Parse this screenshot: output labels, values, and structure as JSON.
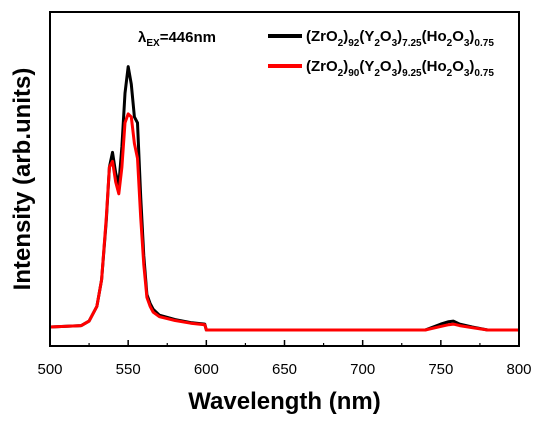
{
  "chart_data": {
    "type": "line",
    "xlabel": "Wavelength (nm)",
    "ylabel": "Intensity (arb.units)",
    "xlim": [
      500,
      800
    ],
    "ylim": [
      0,
      1.0
    ],
    "x_ticks": [
      "500",
      "550",
      "600",
      "650",
      "700",
      "750",
      "800"
    ],
    "y_ticks_shown": false,
    "grid": false,
    "legend_position": "top-right",
    "annotation": {
      "symbol": "λ",
      "subscript": "EX",
      "text": "=446nm"
    },
    "series": [
      {
        "name": "(ZrO2)92(Y2O3)7.25(Ho2O3)0.75",
        "color": "#000000",
        "legend_parts": [
          [
            "(ZrO",
            "n"
          ],
          [
            "2",
            "s"
          ],
          [
            ")",
            "n"
          ],
          [
            "92",
            "s"
          ],
          [
            "(Y",
            "n"
          ],
          [
            "2",
            "s"
          ],
          [
            "O",
            "n"
          ],
          [
            "3",
            "s"
          ],
          [
            ")",
            "n"
          ],
          [
            "7.25",
            "s"
          ],
          [
            "(Ho",
            "n"
          ],
          [
            "2",
            "s"
          ],
          [
            "O",
            "n"
          ],
          [
            "3",
            "s"
          ],
          [
            ")",
            "n"
          ],
          [
            "0.75",
            "s"
          ]
        ],
        "x": [
          500,
          520,
          525,
          530,
          533,
          536,
          538,
          540,
          542,
          544,
          546,
          548,
          550,
          552,
          554,
          556,
          558,
          560,
          562,
          564,
          566,
          570,
          580,
          590,
          599,
          600,
          650,
          700,
          740,
          750,
          755,
          758,
          762,
          770,
          780,
          800
        ],
        "y": [
          0.01,
          0.015,
          0.03,
          0.08,
          0.17,
          0.37,
          0.55,
          0.6,
          0.53,
          0.49,
          0.62,
          0.8,
          0.89,
          0.83,
          0.72,
          0.7,
          0.45,
          0.25,
          0.12,
          0.09,
          0.07,
          0.05,
          0.035,
          0.025,
          0.02,
          0.0,
          0.0,
          0.0,
          0.0,
          0.02,
          0.028,
          0.03,
          0.02,
          0.01,
          0.0,
          0.0
        ]
      },
      {
        "name": "(ZrO2)90(Y2O3)9.25(Ho2O3)0.75",
        "color": "#ff0000",
        "legend_parts": [
          [
            "(ZrO",
            "n"
          ],
          [
            "2",
            "s"
          ],
          [
            ")",
            "n"
          ],
          [
            "90",
            "s"
          ],
          [
            "(Y",
            "n"
          ],
          [
            "2",
            "s"
          ],
          [
            "O",
            "n"
          ],
          [
            "3",
            "s"
          ],
          [
            ")",
            "n"
          ],
          [
            "9.25",
            "s"
          ],
          [
            "(Ho",
            "n"
          ],
          [
            "2",
            "s"
          ],
          [
            "O",
            "n"
          ],
          [
            "3",
            "s"
          ],
          [
            ")",
            "n"
          ],
          [
            "0.75",
            "s"
          ]
        ],
        "x": [
          500,
          520,
          525,
          530,
          533,
          536,
          538,
          540,
          542,
          544,
          546,
          548,
          550,
          552,
          554,
          556,
          558,
          560,
          562,
          564,
          566,
          570,
          580,
          590,
          599,
          600,
          650,
          700,
          740,
          750,
          755,
          758,
          762,
          770,
          780,
          800
        ],
        "y": [
          0.01,
          0.015,
          0.03,
          0.08,
          0.17,
          0.38,
          0.55,
          0.57,
          0.5,
          0.46,
          0.55,
          0.7,
          0.73,
          0.72,
          0.63,
          0.58,
          0.38,
          0.22,
          0.11,
          0.08,
          0.06,
          0.045,
          0.032,
          0.023,
          0.018,
          0.0,
          0.0,
          0.0,
          0.0,
          0.012,
          0.018,
          0.02,
          0.015,
          0.008,
          0.0,
          0.0
        ]
      }
    ]
  }
}
